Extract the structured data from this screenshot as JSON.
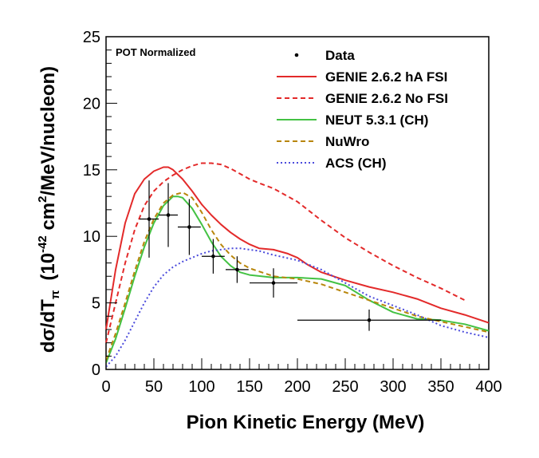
{
  "chart_data": {
    "type": "line",
    "xlabel": "Pion Kinetic Energy (MeV)",
    "ylabel": {
      "main": "dσ/dT",
      "sub": "π",
      "units_prefix": "(10",
      "units_exp": "-42",
      "units_mid": " cm",
      "units_exp2": "2",
      "units_suffix": "/MeV/nucleon)"
    },
    "annotation": "POT Normalized",
    "xlim": [
      0,
      400
    ],
    "ylim": [
      0,
      25
    ],
    "xticks": [
      0,
      50,
      100,
      150,
      200,
      250,
      300,
      350,
      400
    ],
    "yticks": [
      0,
      5,
      10,
      15,
      20,
      25
    ],
    "legend_position": "top-right",
    "data": {
      "name": "Data",
      "points": [
        {
          "x": 45,
          "y": 11.3,
          "xerr": 10,
          "yerr": 2.9
        },
        {
          "x": 65,
          "y": 11.6,
          "xerr": 10,
          "yerr": 2.4
        },
        {
          "x": 87,
          "y": 10.7,
          "xerr": 12,
          "yerr": 2.1
        },
        {
          "x": 112,
          "y": 8.5,
          "xerr": 12,
          "yerr": 1.3
        },
        {
          "x": 137,
          "y": 7.5,
          "xerr": 12,
          "yerr": 1.0
        },
        {
          "x": 175,
          "y": 6.5,
          "xerr": 25,
          "yerr": 1.1
        },
        {
          "x": 275,
          "y": 3.7,
          "xerr": 75,
          "yerr": 0.8
        }
      ]
    },
    "series": [
      {
        "name": "GENIE 2.6.2 hA FSI",
        "color": "#e32a2a",
        "dash": "solid",
        "x": [
          0,
          10,
          20,
          30,
          40,
          50,
          60,
          65,
          70,
          80,
          90,
          100,
          110,
          120,
          130,
          140,
          150,
          160,
          175,
          190,
          200,
          210,
          225,
          250,
          275,
          300,
          325,
          350,
          375,
          400
        ],
        "y": [
          3.0,
          7.5,
          11.0,
          13.2,
          14.3,
          14.9,
          15.2,
          15.2,
          15.0,
          14.3,
          13.4,
          12.4,
          11.6,
          10.9,
          10.3,
          9.8,
          9.4,
          9.1,
          9.0,
          8.7,
          8.4,
          7.9,
          7.3,
          6.7,
          6.2,
          5.8,
          5.3,
          4.6,
          4.1,
          3.5
        ]
      },
      {
        "name": "GENIE 2.6.2 No FSI",
        "color": "#e32a2a",
        "dash": "dashed",
        "x": [
          0,
          10,
          20,
          30,
          40,
          50,
          60,
          70,
          80,
          90,
          100,
          110,
          120,
          130,
          140,
          150,
          160,
          175,
          200,
          225,
          250,
          275,
          300,
          325,
          350,
          375
        ],
        "y": [
          2.0,
          5.0,
          8.0,
          10.5,
          12.3,
          13.4,
          14.1,
          14.6,
          15.0,
          15.3,
          15.5,
          15.5,
          15.4,
          15.1,
          14.7,
          14.3,
          14.0,
          13.6,
          12.6,
          11.2,
          9.9,
          8.8,
          7.8,
          6.9,
          6.1,
          5.2
        ]
      },
      {
        "name": "NEUT 5.3.1 (CH)",
        "color": "#44c244",
        "dash": "solid",
        "x": [
          0,
          10,
          20,
          30,
          40,
          50,
          60,
          70,
          75,
          80,
          90,
          100,
          110,
          120,
          130,
          140,
          150,
          175,
          200,
          225,
          250,
          275,
          300,
          325,
          350,
          375,
          400
        ],
        "y": [
          0.5,
          2.3,
          4.6,
          7.0,
          9.2,
          11.0,
          12.3,
          13.0,
          13.0,
          12.9,
          12.1,
          10.9,
          9.6,
          8.5,
          7.8,
          7.3,
          7.1,
          6.9,
          6.9,
          6.8,
          6.3,
          5.2,
          4.3,
          3.8,
          3.7,
          3.4,
          2.9
        ]
      },
      {
        "name": "NuWro",
        "color": "#b8860b",
        "dash": "dashed",
        "x": [
          0,
          10,
          20,
          30,
          40,
          50,
          60,
          70,
          80,
          90,
          100,
          110,
          120,
          130,
          140,
          150,
          175,
          200,
          225,
          250,
          275,
          300,
          325,
          350,
          375,
          400
        ],
        "y": [
          0.7,
          2.7,
          5.0,
          7.4,
          9.6,
          11.3,
          12.5,
          13.1,
          13.3,
          12.9,
          11.8,
          10.5,
          9.4,
          8.6,
          8.0,
          7.6,
          7.0,
          6.8,
          6.4,
          5.8,
          5.2,
          4.6,
          4.0,
          3.6,
          3.2,
          2.8
        ]
      },
      {
        "name": "ACS (CH)",
        "color": "#4b4bdc",
        "dash": "dotted",
        "x": [
          0,
          10,
          20,
          30,
          40,
          50,
          60,
          70,
          80,
          90,
          100,
          110,
          120,
          130,
          140,
          150,
          160,
          175,
          200,
          225,
          250,
          275,
          300,
          325,
          350,
          375,
          400
        ],
        "y": [
          0.2,
          1.0,
          2.2,
          3.6,
          5.0,
          6.2,
          7.1,
          7.7,
          8.1,
          8.4,
          8.7,
          8.9,
          9.0,
          9.1,
          9.1,
          9.0,
          8.9,
          8.6,
          8.2,
          7.5,
          6.5,
          5.5,
          4.8,
          4.1,
          3.3,
          2.8,
          2.4
        ]
      }
    ]
  }
}
